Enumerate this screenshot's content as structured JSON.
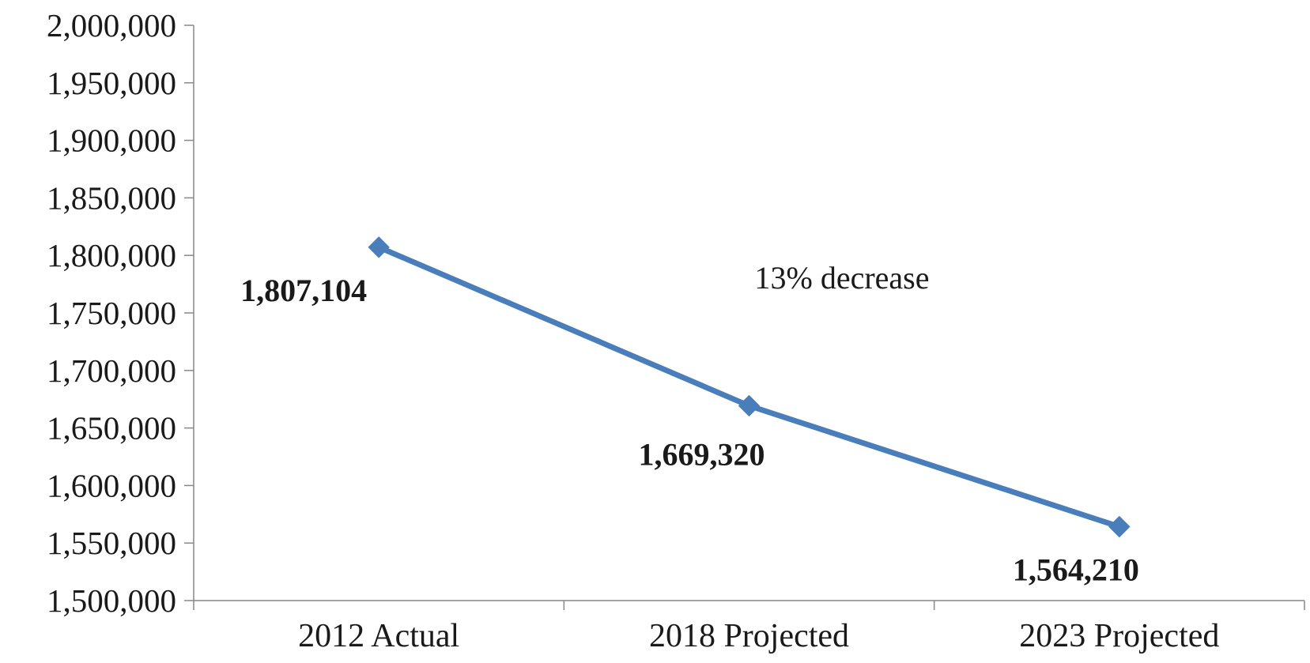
{
  "chart_data": {
    "type": "line",
    "categories": [
      "2012 Actual",
      "2018 Projected",
      "2023 Projected"
    ],
    "series": [
      {
        "values": [
          1807104,
          1669320,
          1564210
        ]
      }
    ],
    "data_labels": [
      "1,807,104",
      "1,669,320",
      "1,564,210"
    ],
    "annotation": "13% decrease",
    "yticks": [
      "1,500,000",
      "1,550,000",
      "1,600,000",
      "1,650,000",
      "1,700,000",
      "1,750,000",
      "1,800,000",
      "1,850,000",
      "1,900,000",
      "1,950,000",
      "2,000,000"
    ],
    "ylim": [
      1500000,
      2000000
    ],
    "ystep": 50000,
    "title": "",
    "xlabel": "",
    "ylabel": "",
    "grid": false,
    "line_color": "#4a7ebb",
    "marker": "diamond"
  }
}
